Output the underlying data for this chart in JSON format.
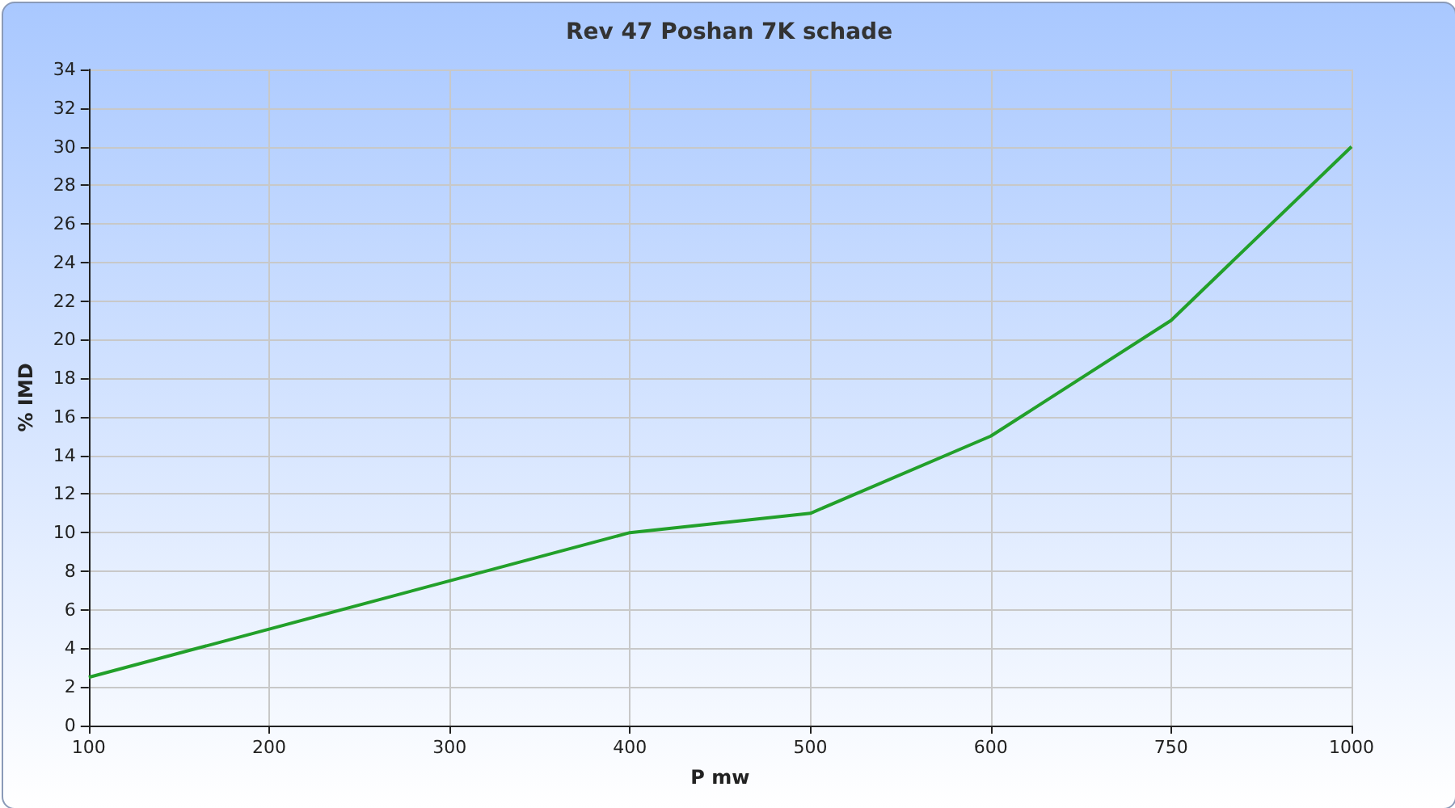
{
  "chart_data": {
    "type": "line",
    "title": "Rev 47 Poshan 7K schade",
    "xlabel": "P mw",
    "ylabel": "% IMD",
    "categories": [
      "100",
      "200",
      "300",
      "400",
      "500",
      "600",
      "750",
      "1000"
    ],
    "series": [
      {
        "color": "#22a02a",
        "values": [
          2.5,
          5,
          7.5,
          10,
          11,
          15,
          21,
          30
        ]
      }
    ],
    "ylim": [
      0,
      34
    ],
    "yticks": [
      0,
      2,
      4,
      6,
      8,
      10,
      12,
      14,
      16,
      18,
      20,
      22,
      24,
      26,
      28,
      30,
      32,
      34
    ],
    "grid": true,
    "marker": "none",
    "line_style": "solid"
  }
}
